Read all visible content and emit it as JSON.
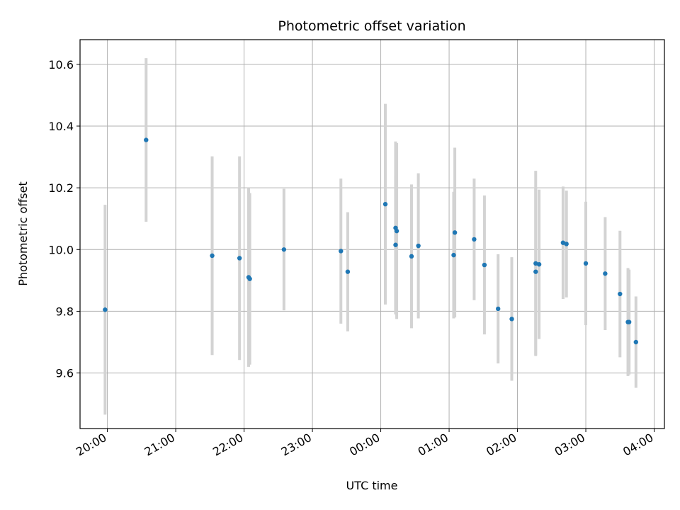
{
  "chart_data": {
    "type": "scatter",
    "title": "Photometric offset variation",
    "xlabel": "UTC time",
    "ylabel": "Photometric offset",
    "grid": true,
    "x_ticks": [
      "20:00",
      "21:00",
      "22:00",
      "23:00",
      "00:00",
      "01:00",
      "02:00",
      "03:00",
      "04:00"
    ],
    "x_tick_hours": [
      20,
      21,
      22,
      23,
      24,
      25,
      26,
      27,
      28
    ],
    "xlim_hours": [
      19.6,
      28.15
    ],
    "y_ticks": [
      "9.6",
      "9.8",
      "10.0",
      "10.2",
      "10.4",
      "10.6"
    ],
    "ylim": [
      9.42,
      10.68
    ],
    "marker_color": "#1f77b4",
    "errorbar_color": "#d3d3d3",
    "series": [
      {
        "points": [
          {
            "time": "19:58",
            "y": 9.805,
            "err": 0.34
          },
          {
            "time": "20:34",
            "y": 10.355,
            "err": 0.265
          },
          {
            "time": "21:32",
            "y": 9.98,
            "err": 0.322
          },
          {
            "time": "21:56",
            "y": 9.972,
            "err": 0.33
          },
          {
            "time": "22:04",
            "y": 9.91,
            "err": 0.29
          },
          {
            "time": "22:05",
            "y": 9.905,
            "err": 0.278
          },
          {
            "time": "22:35",
            "y": 10.0,
            "err": 0.197
          },
          {
            "time": "23:25",
            "y": 9.995,
            "err": 0.235
          },
          {
            "time": "23:31",
            "y": 9.928,
            "err": 0.193
          },
          {
            "time": "00:04",
            "y": 10.147,
            "err": 0.325
          },
          {
            "time": "00:13",
            "y": 10.015,
            "err": 0.225
          },
          {
            "time": "00:13",
            "y": 10.07,
            "err": 0.28
          },
          {
            "time": "00:14",
            "y": 10.06,
            "err": 0.285
          },
          {
            "time": "00:27",
            "y": 9.978,
            "err": 0.233
          },
          {
            "time": "00:33",
            "y": 10.012,
            "err": 0.235
          },
          {
            "time": "01:04",
            "y": 9.982,
            "err": 0.205
          },
          {
            "time": "01:05",
            "y": 10.055,
            "err": 0.275
          },
          {
            "time": "01:22",
            "y": 10.033,
            "err": 0.197
          },
          {
            "time": "01:31",
            "y": 9.95,
            "err": 0.225
          },
          {
            "time": "01:43",
            "y": 9.808,
            "err": 0.177
          },
          {
            "time": "01:55",
            "y": 9.775,
            "err": 0.2
          },
          {
            "time": "02:16",
            "y": 9.955,
            "err": 0.3
          },
          {
            "time": "02:16",
            "y": 9.928,
            "err": 0.27
          },
          {
            "time": "02:19",
            "y": 9.952,
            "err": 0.242
          },
          {
            "time": "02:40",
            "y": 10.022,
            "err": 0.182
          },
          {
            "time": "02:43",
            "y": 10.018,
            "err": 0.173
          },
          {
            "time": "03:00",
            "y": 9.955,
            "err": 0.2
          },
          {
            "time": "03:17",
            "y": 9.922,
            "err": 0.183
          },
          {
            "time": "03:30",
            "y": 9.856,
            "err": 0.205
          },
          {
            "time": "03:37",
            "y": 9.765,
            "err": 0.175
          },
          {
            "time": "03:38",
            "y": 9.765,
            "err": 0.17
          },
          {
            "time": "03:44",
            "y": 9.7,
            "err": 0.148
          }
        ]
      }
    ]
  }
}
